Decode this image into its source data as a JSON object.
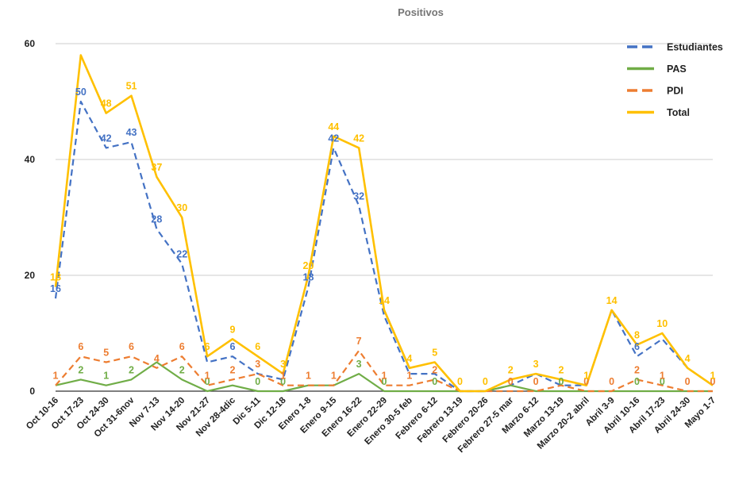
{
  "chart_data": {
    "type": "line",
    "title": "Positivos",
    "xlabel": "",
    "ylabel": "",
    "ylim": [
      0,
      60
    ],
    "yticks": [
      0,
      20,
      40,
      60
    ],
    "grid": true,
    "legend_position": "top-right",
    "categories": [
      "Oct 10-16",
      "Oct 17-23",
      "Oct 24-30",
      "Oct 31-6nov",
      "Nov 7-13",
      "Nov 14-20",
      "Nov 21-27",
      "Nov 28-4dic",
      "Dic 5-11",
      "Dic 12-18",
      "Enero 1-8",
      "Enero 9-15",
      "Enero 16-22",
      "Enero 22-29",
      "Enero 30-5 feb",
      "Febrero 6-12",
      "Febrero 13-19",
      "Febrero 20-26",
      "Febrero 27-5 mar",
      "Marzo 6-12",
      "Marzo 13-19",
      "Marzo 20-2 abril",
      "Abril 3-9",
      "Abril 10-16",
      "Abril 17-23",
      "Abril 24-30",
      "Mayo 1-7"
    ],
    "series": [
      {
        "name": "Estudiantes",
        "color": "#4472c4",
        "dash": true,
        "values": [
          16,
          50,
          42,
          43,
          28,
          22,
          5,
          6,
          3,
          2,
          18,
          42,
          32,
          13,
          3,
          3,
          0,
          0,
          1,
          3,
          1,
          1,
          14,
          6,
          9,
          4,
          1
        ]
      },
      {
        "name": "PAS",
        "color": "#70ad47",
        "dash": false,
        "values": [
          1,
          2,
          1,
          2,
          5,
          2,
          0,
          1,
          0,
          0,
          1,
          1,
          3,
          0,
          0,
          0,
          0,
          0,
          1,
          0,
          0,
          0,
          0,
          0,
          0,
          0,
          0
        ]
      },
      {
        "name": "PDI",
        "color": "#ed7d31",
        "dash": true,
        "values": [
          1,
          6,
          5,
          6,
          4,
          6,
          1,
          2,
          3,
          1,
          1,
          1,
          7,
          1,
          1,
          2,
          0,
          0,
          0,
          0,
          1,
          0,
          0,
          2,
          1,
          0,
          0
        ]
      },
      {
        "name": "Total",
        "color": "#ffc000",
        "dash": false,
        "values": [
          18,
          58,
          48,
          51,
          37,
          30,
          6,
          9,
          6,
          3,
          20,
          44,
          42,
          14,
          4,
          5,
          0,
          0,
          2,
          3,
          2,
          1,
          14,
          8,
          10,
          4,
          1
        ]
      }
    ],
    "data_labels": {
      "Estudiantes": [
        16,
        50,
        42,
        43,
        28,
        22,
        null,
        6,
        null,
        null,
        18,
        42,
        32,
        null,
        null,
        null,
        null,
        null,
        null,
        null,
        null,
        null,
        null,
        6,
        null,
        null,
        null
      ],
      "PAS": [
        null,
        2,
        1,
        2,
        null,
        2,
        0,
        null,
        0,
        0,
        null,
        null,
        3,
        0,
        null,
        0,
        null,
        null,
        null,
        null,
        0,
        null,
        null,
        0,
        0,
        null,
        null
      ],
      "PDI": [
        1,
        6,
        5,
        6,
        4,
        6,
        1,
        2,
        3,
        1,
        1,
        1,
        7,
        1,
        1,
        2,
        null,
        null,
        0,
        0,
        null,
        0,
        0,
        2,
        1,
        0,
        0
      ],
      "Total": [
        18,
        null,
        48,
        51,
        37,
        30,
        6,
        9,
        6,
        3,
        20,
        44,
        42,
        14,
        4,
        5,
        0,
        0,
        2,
        3,
        2,
        1,
        14,
        8,
        10,
        4,
        1
      ]
    }
  }
}
